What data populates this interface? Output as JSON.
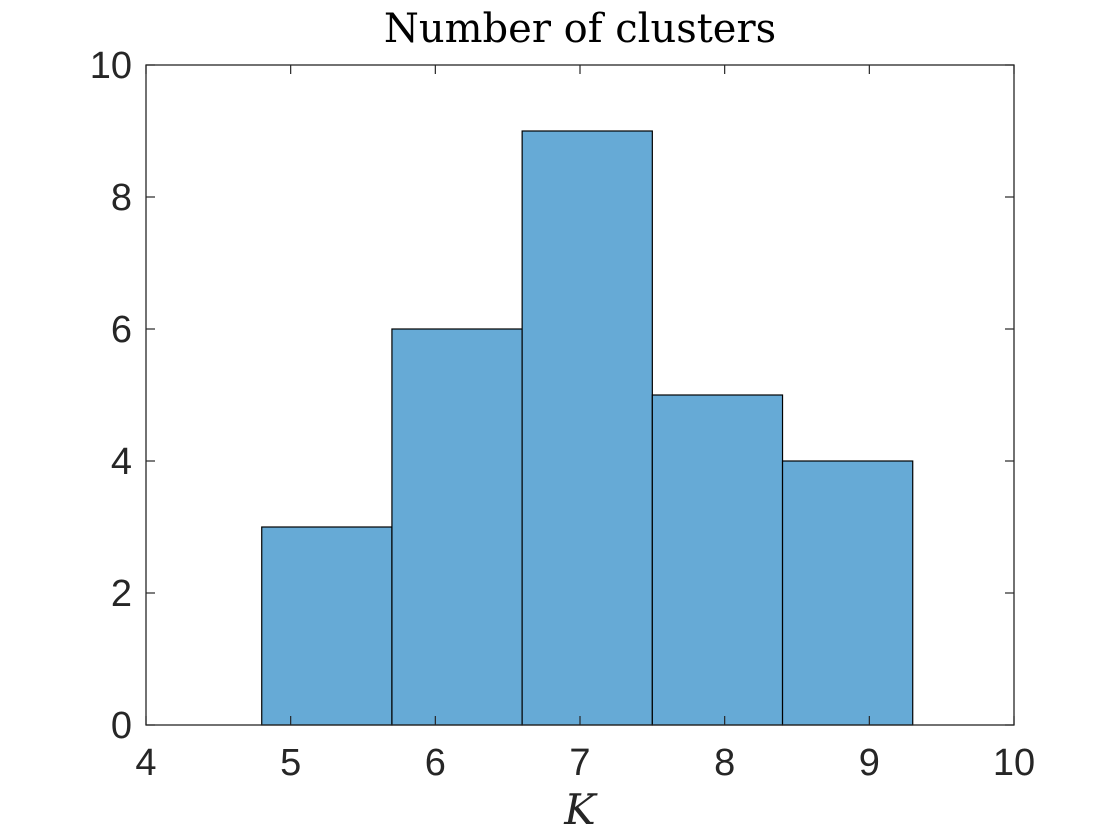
{
  "chart_data": {
    "type": "bar",
    "subtype": "histogram",
    "title": "Number of clusters",
    "xlabel": "K",
    "ylabel": "",
    "xlim": [
      4,
      10
    ],
    "ylim": [
      0,
      10
    ],
    "xticks": [
      "4",
      "5",
      "6",
      "7",
      "8",
      "9",
      "10"
    ],
    "yticks": [
      "0",
      "2",
      "4",
      "6",
      "8",
      "10"
    ],
    "bin_edges": [
      4.8,
      5.7,
      6.6,
      7.5,
      8.4,
      9.3
    ],
    "values": [
      3,
      6,
      9,
      5,
      4
    ],
    "grid": false,
    "colors": {
      "bar_fill": "#66aad6",
      "bar_edge": "#000000",
      "axis": "#262626"
    }
  }
}
